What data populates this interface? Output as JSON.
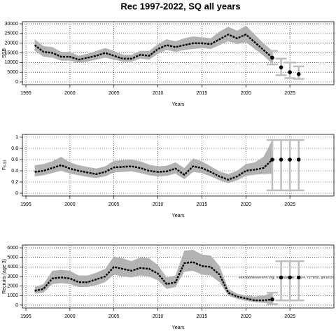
{
  "title": "Rec 1997-2022, SQ all years",
  "chart_data": [
    {
      "type": "line",
      "xlabel": "Years",
      "ylabel": "SSB",
      "xlim": [
        1994.6,
        2030
      ],
      "xticks": [
        1995,
        2000,
        2005,
        2010,
        2015,
        2020,
        2025
      ],
      "ylim": [
        -1450,
        31100
      ],
      "yticks": [
        0,
        5000,
        10000,
        15000,
        20000,
        25000,
        30000
      ],
      "grid": true,
      "band_color": "#b3b3b3",
      "line_color": "#000000",
      "bar_color": "#bebebe",
      "x": [
        1996,
        1997,
        1998,
        1999,
        2000,
        2001,
        2002,
        2003,
        2004,
        2005,
        2006,
        2007,
        2008,
        2009,
        2010,
        2011,
        2012,
        2013,
        2014,
        2015,
        2016,
        2017,
        2018,
        2019,
        2020,
        2021,
        2022,
        2023
      ],
      "values": [
        19000,
        15500,
        15000,
        13000,
        13000,
        11500,
        12500,
        13500,
        15000,
        13500,
        12000,
        12000,
        14000,
        13500,
        17000,
        19000,
        18000,
        19000,
        20000,
        20000,
        19500,
        22000,
        24500,
        22500,
        24500,
        20500,
        16500,
        12500
      ],
      "lower": [
        16000,
        13000,
        12500,
        11000,
        11000,
        10000,
        10500,
        11500,
        12500,
        11500,
        10500,
        10500,
        12000,
        11500,
        14500,
        16500,
        15500,
        16500,
        17000,
        17500,
        17000,
        19000,
        21000,
        19500,
        20500,
        17000,
        13500,
        9500
      ],
      "upper": [
        22000,
        18500,
        18000,
        15500,
        15500,
        13500,
        14500,
        16000,
        17500,
        16000,
        14000,
        14000,
        16000,
        16000,
        19500,
        22000,
        21000,
        22500,
        23500,
        23000,
        22500,
        26000,
        28500,
        26500,
        29000,
        24500,
        20000,
        16000
      ],
      "forecast": {
        "x": [
          2023,
          2024,
          2025,
          2026
        ],
        "values": [
          12500,
          7500,
          5000,
          4000
        ],
        "lower": [
          9000,
          3500,
          2000,
          1500
        ],
        "upper": [
          16000,
          12000,
          10000,
          8000
        ]
      }
    },
    {
      "type": "line",
      "xlabel": "Years",
      "ylabel": "F",
      "ylabel_sub": "6-10",
      "xlim": [
        1994.6,
        2030
      ],
      "xticks": [
        1995,
        2000,
        2005,
        2010,
        2015,
        2020,
        2025
      ],
      "ylim": [
        -0.05,
        1.05
      ],
      "yticks": [
        0,
        0.2,
        0.4,
        0.6,
        0.8,
        1
      ],
      "grid": true,
      "band_color": "#b3b3b3",
      "line_color": "#000000",
      "bar_color": "#bebebe",
      "x": [
        1996,
        1997,
        1998,
        1999,
        2000,
        2001,
        2002,
        2003,
        2004,
        2005,
        2006,
        2007,
        2008,
        2009,
        2010,
        2011,
        2012,
        2013,
        2014,
        2015,
        2016,
        2017,
        2018,
        2019,
        2020,
        2021,
        2022,
        2023
      ],
      "values": [
        0.38,
        0.4,
        0.45,
        0.5,
        0.44,
        0.4,
        0.37,
        0.34,
        0.38,
        0.46,
        0.47,
        0.48,
        0.45,
        0.4,
        0.38,
        0.39,
        0.44,
        0.33,
        0.48,
        0.45,
        0.38,
        0.3,
        0.24,
        0.3,
        0.4,
        0.42,
        0.45,
        0.6
      ],
      "lower": [
        0.3,
        0.32,
        0.36,
        0.4,
        0.35,
        0.32,
        0.29,
        0.27,
        0.3,
        0.37,
        0.38,
        0.39,
        0.36,
        0.32,
        0.3,
        0.31,
        0.35,
        0.25,
        0.38,
        0.36,
        0.3,
        0.23,
        0.18,
        0.23,
        0.31,
        0.33,
        0.34,
        0.35
      ],
      "upper": [
        0.5,
        0.52,
        0.57,
        0.65,
        0.55,
        0.5,
        0.47,
        0.44,
        0.48,
        0.58,
        0.59,
        0.6,
        0.57,
        0.51,
        0.48,
        0.49,
        0.55,
        0.45,
        0.62,
        0.57,
        0.48,
        0.39,
        0.34,
        0.4,
        0.52,
        0.55,
        0.65,
        0.95
      ],
      "forecast": {
        "x": [
          2023,
          2024,
          2025,
          2026
        ],
        "values": [
          0.6,
          0.6,
          0.6,
          0.6
        ],
        "lower": [
          0.05,
          0.05,
          0.05,
          0.05
        ],
        "upper": [
          0.95,
          0.95,
          0.95,
          0.95
        ]
      }
    },
    {
      "type": "line",
      "xlabel": "Years",
      "ylabel": "Recruits (age 3)",
      "annotation": "stockassessment.org, my_update_2024, r17932, git:ec2c",
      "xlim": [
        1994.6,
        2030
      ],
      "xticks": [
        1995,
        2000,
        2005,
        2010,
        2015,
        2020,
        2025
      ],
      "ylim": [
        -300,
        6300
      ],
      "yticks": [
        0,
        1000,
        2000,
        3000,
        4000,
        5000,
        6000
      ],
      "grid": true,
      "band_color": "#b3b3b3",
      "line_color": "#000000",
      "bar_color": "#bebebe",
      "x": [
        1996,
        1997,
        1998,
        1999,
        2000,
        2001,
        2002,
        2003,
        2004,
        2005,
        2006,
        2007,
        2008,
        2009,
        2010,
        2011,
        2012,
        2013,
        2014,
        2015,
        2016,
        2017,
        2018,
        2019,
        2020,
        2021,
        2022,
        2023
      ],
      "values": [
        1500,
        1700,
        2800,
        2900,
        2800,
        2400,
        2400,
        2700,
        3000,
        4000,
        3800,
        3600,
        3900,
        3800,
        3300,
        2200,
        2400,
        4400,
        4500,
        4100,
        4000,
        3200,
        1300,
        900,
        700,
        500,
        500,
        600
      ],
      "lower": [
        1200,
        1300,
        2200,
        2300,
        2200,
        1900,
        1900,
        2100,
        2400,
        3200,
        3000,
        2900,
        3100,
        3000,
        2600,
        1700,
        1900,
        3500,
        3600,
        3200,
        3100,
        2400,
        1000,
        650,
        450,
        300,
        250,
        150
      ],
      "upper": [
        1900,
        2200,
        3600,
        3700,
        3600,
        3100,
        3100,
        3400,
        3800,
        5100,
        4900,
        4600,
        5000,
        4900,
        4200,
        2900,
        3100,
        5700,
        5800,
        5300,
        5200,
        4100,
        1700,
        1200,
        1000,
        900,
        1000,
        1300
      ],
      "forecast": {
        "x": [
          2023,
          2024,
          2025,
          2026
        ],
        "values": [
          600,
          2900,
          2900,
          2900
        ],
        "lower": [
          100,
          500,
          500,
          500
        ],
        "upper": [
          1300,
          4600,
          4600,
          4600
        ]
      }
    }
  ]
}
